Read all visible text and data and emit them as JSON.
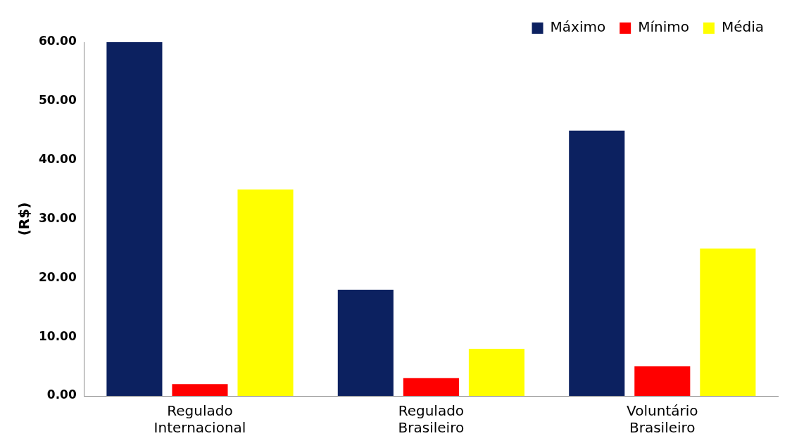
{
  "chart_data": {
    "type": "bar",
    "ylabel": "(R$)",
    "categories": [
      "Regulado Internacional",
      "Regulado Brasileiro",
      "Voluntário Brasileiro"
    ],
    "series": [
      {
        "name": "Máximo",
        "color": "#0c2160",
        "values": [
          60,
          18,
          45
        ]
      },
      {
        "name": "Mínimo",
        "color": "#ff0000",
        "values": [
          2,
          3,
          5
        ]
      },
      {
        "name": "Média",
        "color": "#ffff00",
        "values": [
          35,
          8,
          25
        ]
      }
    ],
    "ylim": [
      0,
      60
    ],
    "yticks": [
      {
        "value": 0,
        "label": "0.00"
      },
      {
        "value": 10,
        "label": "10.00"
      },
      {
        "value": 20,
        "label": "20.00"
      },
      {
        "value": 30,
        "label": "30.00"
      },
      {
        "value": 40,
        "label": "40.00"
      },
      {
        "value": 50,
        "label": "50.00"
      },
      {
        "value": 60,
        "label": "60.00"
      }
    ],
    "grid": false,
    "legend": "top right"
  }
}
